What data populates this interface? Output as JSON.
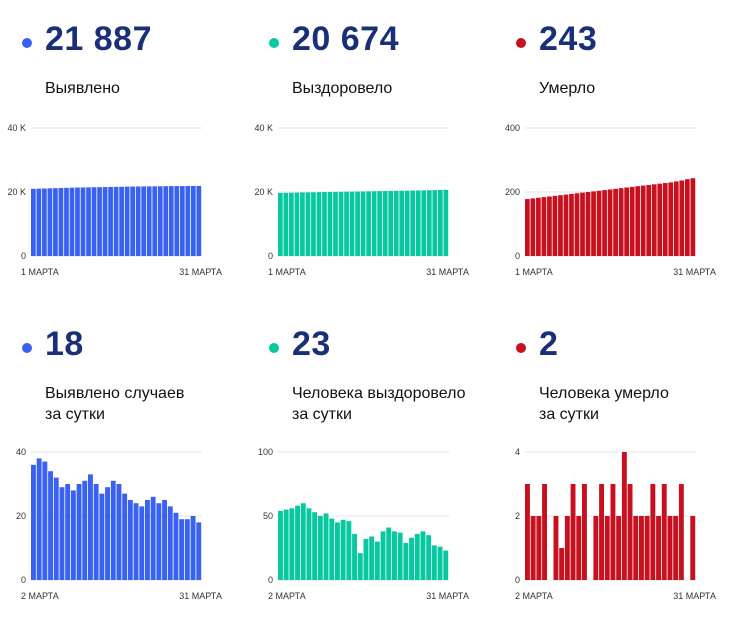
{
  "panels": [
    {
      "id": "detected-total",
      "value": "21 887",
      "label_line1": "Выявлено",
      "label_line2": "",
      "color": "#3a62f2",
      "chart_data": {
        "type": "bar",
        "x_start_label": "1 МАРТА",
        "x_end_label": "31 МАРТА",
        "yticks": [
          "0",
          "20 K",
          "40 K"
        ],
        "ylim": [
          0,
          40000
        ],
        "values": [
          21000,
          21050,
          21100,
          21150,
          21200,
          21250,
          21300,
          21350,
          21400,
          21430,
          21460,
          21490,
          21520,
          21550,
          21580,
          21610,
          21640,
          21670,
          21700,
          21720,
          21740,
          21760,
          21780,
          21800,
          21820,
          21840,
          21855,
          21865,
          21875,
          21882,
          21887
        ]
      }
    },
    {
      "id": "recovered-total",
      "value": "20 674",
      "label_line1": "Выздоровело",
      "label_line2": "",
      "color": "#08c8a0",
      "chart_data": {
        "type": "bar",
        "x_start_label": "1 МАРТА",
        "x_end_label": "31 МАРТА",
        "yticks": [
          "0",
          "20 K",
          "40 K"
        ],
        "ylim": [
          0,
          40000
        ],
        "values": [
          19700,
          19740,
          19780,
          19820,
          19860,
          19890,
          19920,
          19950,
          19980,
          20010,
          20040,
          20070,
          20100,
          20130,
          20160,
          20190,
          20220,
          20250,
          20280,
          20310,
          20340,
          20370,
          20400,
          20430,
          20460,
          20490,
          20520,
          20560,
          20600,
          20640,
          20674
        ]
      }
    },
    {
      "id": "deaths-total",
      "value": "243",
      "label_line1": "Умерло",
      "label_line2": "",
      "color": "#c8101e",
      "chart_data": {
        "type": "bar",
        "x_start_label": "1 МАРТА",
        "x_end_label": "31 МАРТА",
        "yticks": [
          "0",
          "200",
          "400"
        ],
        "ylim": [
          0,
          400
        ],
        "values": [
          178,
          180,
          182,
          184,
          186,
          188,
          190,
          192,
          194,
          196,
          198,
          200,
          202,
          204,
          206,
          208,
          210,
          212,
          214,
          216,
          218,
          220,
          222,
          224,
          226,
          228,
          230,
          233,
          236,
          240,
          243
        ]
      }
    },
    {
      "id": "detected-daily",
      "value": "18",
      "label_line1": "Выявлено случаев",
      "label_line2": "за сутки",
      "color": "#3a62f2",
      "chart_data": {
        "type": "bar",
        "x_start_label": "2 МАРТА",
        "x_end_label": "31 МАРТА",
        "yticks": [
          "0",
          "20",
          "40"
        ],
        "ylim": [
          0,
          40
        ],
        "values": [
          36,
          38,
          37,
          34,
          32,
          29,
          30,
          28,
          30,
          31,
          33,
          30,
          27,
          29,
          31,
          30,
          27,
          25,
          24,
          23,
          25,
          26,
          24,
          25,
          23,
          21,
          19,
          19,
          20,
          18
        ]
      }
    },
    {
      "id": "recovered-daily",
      "value": "23",
      "label_line1": "Человека выздоровело",
      "label_line2": "за сутки",
      "color": "#08c8a0",
      "chart_data": {
        "type": "bar",
        "x_start_label": "2 МАРТА",
        "x_end_label": "31 МАРТА",
        "yticks": [
          "0",
          "50",
          "100"
        ],
        "ylim": [
          0,
          100
        ],
        "values": [
          54,
          55,
          56,
          58,
          60,
          56,
          53,
          50,
          52,
          48,
          45,
          47,
          46,
          36,
          21,
          32,
          34,
          30,
          38,
          41,
          38,
          37,
          29,
          33,
          36,
          38,
          35,
          27,
          26,
          23
        ]
      }
    },
    {
      "id": "deaths-daily",
      "value": "2",
      "label_line1": "Человека умерло",
      "label_line2": "за сутки",
      "color": "#c8101e",
      "chart_data": {
        "type": "bar",
        "x_start_label": "2 МАРТА",
        "x_end_label": "31 МАРТА",
        "yticks": [
          "0",
          "2",
          "4"
        ],
        "ylim": [
          0,
          4
        ],
        "values": [
          3,
          2,
          2,
          3,
          0,
          2,
          1,
          2,
          3,
          2,
          3,
          0,
          2,
          3,
          2,
          3,
          2,
          4,
          3,
          2,
          2,
          2,
          3,
          2,
          3,
          2,
          2,
          3,
          0,
          2
        ]
      }
    }
  ]
}
